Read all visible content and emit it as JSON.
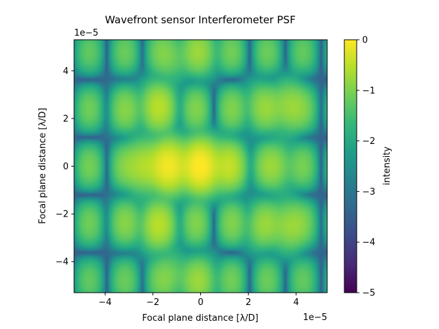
{
  "chart_data": {
    "type": "heatmap",
    "title": "Wavefront sensor Interferometer PSF",
    "xlabel": "Focal plane distance [λ/D]",
    "ylabel": "Focal plane distance [λ/D]",
    "xlim": [
      -5.3,
      5.3
    ],
    "ylim": [
      -5.3,
      5.3
    ],
    "x_scale_label": "1e−5",
    "y_scale_label": "1e−5",
    "x_ticks": [
      -4,
      -2,
      0,
      2,
      4
    ],
    "y_ticks": [
      -4,
      -2,
      0,
      2,
      4
    ],
    "x_tick_labels": [
      "−4",
      "−2",
      "0",
      "2",
      "4"
    ],
    "y_tick_labels": [
      "−4",
      "−2",
      "0",
      "2",
      "4"
    ],
    "colormap": "viridis",
    "colorbar": {
      "label": "intensity",
      "range": [
        -5,
        0
      ],
      "ticks": [
        0,
        -1,
        -2,
        -3,
        -4,
        -5
      ],
      "tick_labels": [
        "0",
        "−1",
        "−2",
        "−3",
        "−4",
        "−5"
      ]
    },
    "peaks": [
      {
        "x": 0.0,
        "y": 0.0,
        "value": 0.0
      },
      {
        "x": -1.3,
        "y": 0.0,
        "value": -0.1
      },
      {
        "x": -2.4,
        "y": 0.0,
        "value": -0.6
      },
      {
        "x": 1.1,
        "y": 0.0,
        "value": -0.6
      },
      {
        "x": -1.8,
        "y": 2.5,
        "value": -0.7
      },
      {
        "x": -1.8,
        "y": -2.5,
        "value": -0.7
      },
      {
        "x": 3.7,
        "y": 2.5,
        "value": -0.8
      },
      {
        "x": 3.7,
        "y": -2.5,
        "value": -0.8
      },
      {
        "x": 3.2,
        "y": 0.0,
        "value": -1.0
      },
      {
        "x": -3.1,
        "y": 2.3,
        "value": -1.5
      },
      {
        "x": -3.1,
        "y": -2.3,
        "value": -1.5
      },
      {
        "x": 0.0,
        "y": 4.8,
        "value": -1.0
      },
      {
        "x": 0.0,
        "y": -4.8,
        "value": -1.0
      },
      {
        "x": -1.2,
        "y": 4.6,
        "value": -1.2
      },
      {
        "x": -1.2,
        "y": -4.6,
        "value": -1.2
      },
      {
        "x": 2.5,
        "y": 2.5,
        "value": -1.1
      },
      {
        "x": 2.5,
        "y": -2.5,
        "value": -1.1
      }
    ]
  }
}
